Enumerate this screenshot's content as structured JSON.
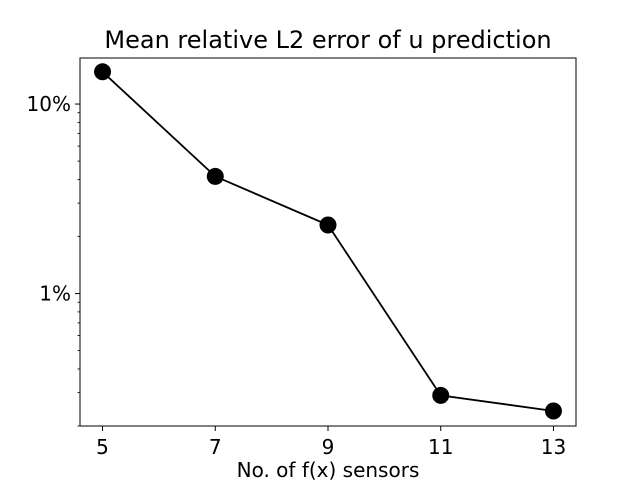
{
  "chart_data": {
    "type": "line",
    "title": "Mean relative L2 error of u prediction",
    "xlabel": "No. of f(x) sensors",
    "ylabel": "",
    "x": [
      5,
      7,
      9,
      11,
      13
    ],
    "series": [
      {
        "values": [
          14.8,
          4.15,
          2.3,
          0.29,
          0.24
        ],
        "color": "#000000",
        "marker": "circle"
      }
    ],
    "x_ticks": [
      5,
      7,
      9,
      11,
      13
    ],
    "x_tick_labels": [
      "5",
      "7",
      "9",
      "11",
      "13"
    ],
    "y_ticks": [
      1,
      10
    ],
    "y_tick_labels": [
      "1%",
      "10%"
    ],
    "y_scale": "log",
    "y_unit": "%",
    "xlim": [
      4.6,
      13.4
    ],
    "ylim": [
      0.2,
      17.5
    ],
    "grid": false,
    "legend": "none"
  }
}
